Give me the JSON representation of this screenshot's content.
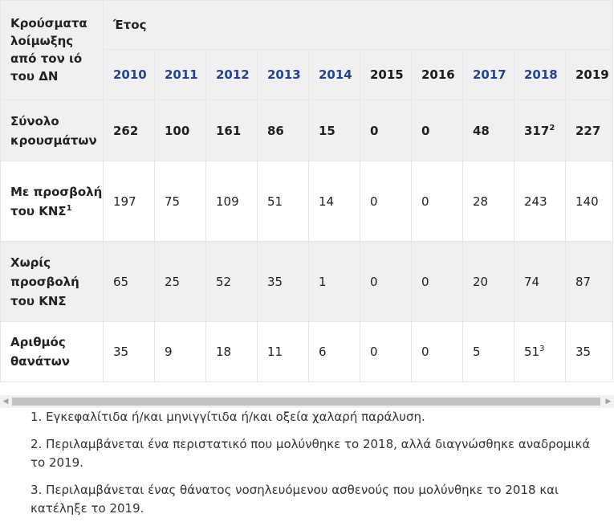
{
  "table": {
    "corner_label": "Κρούσματα λοίμωξης από τον ιό του ΔΝ",
    "year_group_label": "Έτος",
    "years": [
      {
        "label": "2010",
        "link": true
      },
      {
        "label": "2011",
        "link": true
      },
      {
        "label": "2012",
        "link": true
      },
      {
        "label": "2013",
        "link": true
      },
      {
        "label": "2014",
        "link": true
      },
      {
        "label": "2015",
        "link": false
      },
      {
        "label": "2016",
        "link": false
      },
      {
        "label": "2017",
        "link": true
      },
      {
        "label": "2018",
        "link": true
      },
      {
        "label": "2019",
        "link": false
      }
    ],
    "rows": [
      {
        "label": "Σύνολο κρουσμάτων",
        "label_sup": "",
        "bold": true,
        "shade": true,
        "cells": [
          {
            "v": "262",
            "sup": ""
          },
          {
            "v": "100",
            "sup": ""
          },
          {
            "v": "161",
            "sup": ""
          },
          {
            "v": "86",
            "sup": ""
          },
          {
            "v": "15",
            "sup": ""
          },
          {
            "v": "0",
            "sup": ""
          },
          {
            "v": "0",
            "sup": ""
          },
          {
            "v": "48",
            "sup": ""
          },
          {
            "v": "317",
            "sup": "2"
          },
          {
            "v": "227",
            "sup": ""
          }
        ]
      },
      {
        "label": "Με προσβολή του ΚΝΣ",
        "label_sup": "1",
        "bold": false,
        "shade": false,
        "cells": [
          {
            "v": "197",
            "sup": ""
          },
          {
            "v": "75",
            "sup": ""
          },
          {
            "v": "109",
            "sup": ""
          },
          {
            "v": "51",
            "sup": ""
          },
          {
            "v": "14",
            "sup": ""
          },
          {
            "v": "0",
            "sup": ""
          },
          {
            "v": "0",
            "sup": ""
          },
          {
            "v": "28",
            "sup": ""
          },
          {
            "v": "243",
            "sup": ""
          },
          {
            "v": "140",
            "sup": ""
          }
        ]
      },
      {
        "label": "Χωρίς προσβολή του ΚΝΣ",
        "label_sup": "",
        "bold": false,
        "shade": true,
        "cells": [
          {
            "v": "65",
            "sup": ""
          },
          {
            "v": "25",
            "sup": ""
          },
          {
            "v": "52",
            "sup": ""
          },
          {
            "v": "35",
            "sup": ""
          },
          {
            "v": "1",
            "sup": ""
          },
          {
            "v": "0",
            "sup": ""
          },
          {
            "v": "0",
            "sup": ""
          },
          {
            "v": "20",
            "sup": ""
          },
          {
            "v": "74",
            "sup": ""
          },
          {
            "v": "87",
            "sup": ""
          }
        ]
      },
      {
        "label": "Αριθμός θανάτων",
        "label_sup": "",
        "bold": false,
        "shade": false,
        "cells": [
          {
            "v": "35",
            "sup": ""
          },
          {
            "v": "9",
            "sup": ""
          },
          {
            "v": "18",
            "sup": ""
          },
          {
            "v": "11",
            "sup": ""
          },
          {
            "v": "6",
            "sup": ""
          },
          {
            "v": "0",
            "sup": ""
          },
          {
            "v": "0",
            "sup": ""
          },
          {
            "v": "5",
            "sup": ""
          },
          {
            "v": "51",
            "sup": "3"
          },
          {
            "v": "35",
            "sup": ""
          }
        ]
      }
    ]
  },
  "scrollbar": {
    "left_arrow": "◀",
    "right_arrow": "▶"
  },
  "footnotes": [
    "1. Εγκεφαλίτιδα ή/και μηνιγγίτιδα ή/και οξεία χαλαρή παράλυση.",
    "2. Περιλαμβάνεται ένα περιστατικό που μολύνθηκε το 2018, αλλά διαγνώσθηκε αναδρομικά το 2019.",
    "3. Περιλαμβάνεται ένας θάνατος νοσηλευόμενου ασθενούς που μολύνθηκε το 2018 και κατέληξε το 2019."
  ],
  "colors": {
    "link_year": "#27418c",
    "shade": "#f0f0f0",
    "border": "#e6e6e6"
  }
}
